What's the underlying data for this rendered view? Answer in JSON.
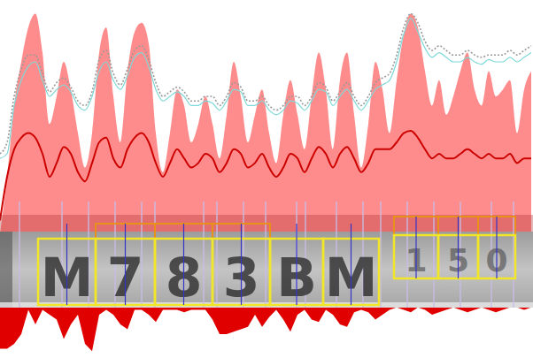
{
  "chart_data": {
    "type": "area",
    "tick_labels": false,
    "xlim": [
      0,
      602
    ],
    "ylim": [
      0,
      100
    ],
    "y2lim": [
      0,
      100
    ],
    "x": [
      0,
      8,
      16,
      24,
      32,
      40,
      48,
      56,
      64,
      72,
      80,
      88,
      96,
      104,
      112,
      120,
      128,
      136,
      144,
      152,
      160,
      168,
      176,
      184,
      192,
      200,
      208,
      216,
      224,
      232,
      240,
      248,
      256,
      264,
      272,
      280,
      288,
      296,
      304,
      312,
      320,
      328,
      336,
      344,
      352,
      360,
      368,
      376,
      384,
      392,
      400,
      408,
      416,
      424,
      432,
      440,
      448,
      456,
      464,
      472,
      480,
      488,
      496,
      504,
      512,
      520,
      528,
      536,
      544,
      552,
      560,
      568,
      576,
      584,
      592,
      600
    ],
    "series": [
      {
        "type": "area",
        "color": "#ff8c8c",
        "values": [
          0,
          25,
          56,
          75,
          90,
          96,
          79,
          48,
          60,
          75,
          63,
          44,
          29,
          44,
          79,
          90,
          60,
          40,
          71,
          88,
          92,
          83,
          44,
          27,
          44,
          63,
          56,
          40,
          48,
          60,
          48,
          33,
          52,
          75,
          60,
          40,
          52,
          63,
          44,
          31,
          52,
          67,
          52,
          37,
          60,
          79,
          63,
          37,
          67,
          79,
          52,
          29,
          48,
          75,
          63,
          44,
          67,
          87,
          96,
          90,
          71,
          56,
          67,
          52,
          60,
          71,
          79,
          63,
          56,
          71,
          60,
          63,
          67,
          44,
          63,
          71
        ]
      },
      {
        "type": "line",
        "color": "#9a9a9a",
        "line_style": "dotted",
        "values": [
          35,
          40,
          60,
          72,
          78,
          78,
          70,
          62,
          66,
          68,
          64,
          58,
          56,
          62,
          76,
          80,
          70,
          65,
          72,
          80,
          82,
          76,
          66,
          60,
          62,
          64,
          62,
          58,
          58,
          60,
          60,
          56,
          60,
          66,
          64,
          58,
          58,
          60,
          56,
          54,
          56,
          60,
          60,
          56,
          60,
          66,
          64,
          58,
          62,
          66,
          60,
          56,
          60,
          66,
          68,
          70,
          78,
          90,
          96,
          92,
          84,
          80,
          82,
          80,
          78,
          78,
          80,
          78,
          77,
          78,
          78,
          78,
          80,
          78,
          80,
          82
        ]
      },
      {
        "type": "line",
        "color": "#7fd8d8",
        "line_style": "solid",
        "values": [
          33,
          35,
          56,
          67,
          73,
          75,
          67,
          60,
          63,
          65,
          62,
          56,
          54,
          60,
          71,
          75,
          67,
          63,
          69,
          77,
          79,
          73,
          63,
          58,
          60,
          62,
          60,
          56,
          56,
          58,
          57,
          54,
          58,
          63,
          62,
          56,
          56,
          58,
          54,
          52,
          54,
          58,
          57,
          54,
          58,
          63,
          62,
          56,
          60,
          63,
          58,
          54,
          58,
          63,
          65,
          67,
          75,
          87,
          94,
          88,
          81,
          77,
          79,
          77,
          75,
          75,
          77,
          75,
          74,
          76,
          75,
          75,
          77,
          75,
          77,
          79
        ]
      },
      {
        "type": "line",
        "color": "#cc0000",
        "line_style": "solid",
        "values": [
          6,
          25,
          37,
          42,
          44,
          42,
          35,
          25,
          31,
          38,
          35,
          27,
          23,
          31,
          40,
          42,
          33,
          29,
          37,
          42,
          44,
          40,
          31,
          25,
          31,
          37,
          33,
          29,
          31,
          35,
          33,
          27,
          31,
          37,
          35,
          29,
          31,
          35,
          29,
          25,
          29,
          35,
          33,
          27,
          33,
          38,
          35,
          29,
          35,
          38,
          33,
          27,
          31,
          37,
          37,
          37,
          40,
          44,
          45,
          42,
          37,
          33,
          35,
          33,
          33,
          35,
          37,
          35,
          33,
          35,
          33,
          33,
          35,
          31,
          33,
          33
        ]
      },
      {
        "type": "area",
        "color": "#e00000",
        "axis": "y2",
        "values": [
          90,
          90,
          80,
          60,
          10,
          40,
          10,
          20,
          30,
          70,
          40,
          20,
          80,
          95,
          20,
          10,
          20,
          40,
          50,
          10,
          10,
          20,
          35,
          10,
          10,
          10,
          15,
          10,
          10,
          10,
          30,
          60,
          60,
          55,
          50,
          45,
          20,
          45,
          25,
          10,
          30,
          55,
          20,
          10,
          30,
          35,
          10,
          20,
          40,
          45,
          15,
          10,
          15,
          30,
          20,
          10,
          5,
          10,
          15,
          5,
          10,
          20,
          15,
          10,
          5,
          10,
          15,
          10,
          5,
          10,
          15,
          10,
          5,
          5,
          10,
          5
        ]
      }
    ],
    "cuts": [
      22,
      70,
      100,
      130,
      160,
      175,
      230,
      245,
      275,
      300,
      335,
      345,
      380,
      410,
      430,
      460,
      490,
      520,
      555,
      580
    ],
    "characters": [
      {
        "label": "M",
        "x0": 43,
        "x1": 108,
        "candidate": false
      },
      {
        "label": "7",
        "x0": 108,
        "x1": 175,
        "candidate": true
      },
      {
        "label": "8",
        "x0": 175,
        "x1": 240,
        "candidate": true
      },
      {
        "label": "3",
        "x0": 240,
        "x1": 305,
        "candidate": true
      },
      {
        "label": "B",
        "x0": 305,
        "x1": 365,
        "candidate": false
      },
      {
        "label": "M",
        "x0": 365,
        "x1": 428,
        "candidate": false
      }
    ],
    "region_characters": [
      {
        "label": "1",
        "x0": 445,
        "x1": 495,
        "candidate": true
      },
      {
        "label": "5",
        "x0": 495,
        "x1": 540,
        "candidate": true
      },
      {
        "label": "0",
        "x0": 540,
        "x1": 582,
        "candidate": true
      }
    ]
  }
}
